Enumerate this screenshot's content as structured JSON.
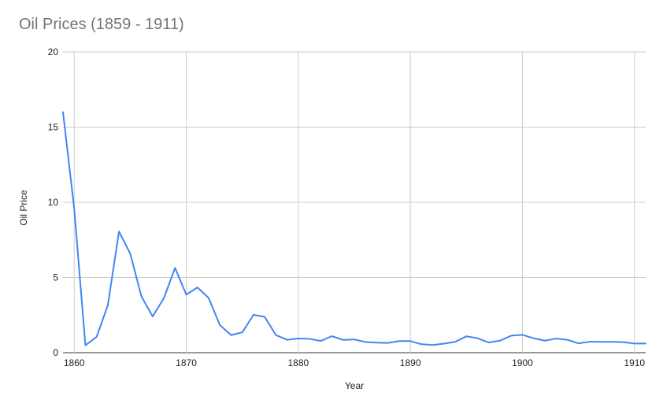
{
  "chart_data": {
    "type": "line",
    "title": "Oil Prices (1859 - 1911)",
    "xlabel": "Year",
    "ylabel": "Oil Price",
    "xlim": [
      1859,
      1911
    ],
    "ylim": [
      0,
      20
    ],
    "x_ticks": [
      1860,
      1870,
      1880,
      1890,
      1900,
      1910
    ],
    "y_ticks": [
      0,
      5,
      10,
      15,
      20
    ],
    "grid": true,
    "legend": "none",
    "line_color": "#4285f4",
    "series": [
      {
        "x": [
          1859,
          1860,
          1861,
          1862,
          1863,
          1864,
          1865,
          1866,
          1867,
          1868,
          1869,
          1870,
          1871,
          1872,
          1873,
          1874,
          1875,
          1876,
          1877,
          1878,
          1879,
          1880,
          1881,
          1882,
          1883,
          1884,
          1885,
          1886,
          1887,
          1888,
          1889,
          1890,
          1891,
          1892,
          1893,
          1894,
          1895,
          1896,
          1897,
          1898,
          1899,
          1900,
          1901,
          1902,
          1903,
          1904,
          1905,
          1906,
          1907,
          1908,
          1909,
          1910,
          1911
        ],
        "y": [
          16.0,
          9.59,
          0.49,
          1.05,
          3.15,
          8.06,
          6.59,
          3.74,
          2.41,
          3.62,
          5.64,
          3.86,
          4.34,
          3.64,
          1.83,
          1.17,
          1.35,
          2.52,
          2.38,
          1.17,
          0.86,
          0.94,
          0.92,
          0.78,
          1.1,
          0.85,
          0.88,
          0.71,
          0.67,
          0.65,
          0.77,
          0.77,
          0.56,
          0.51,
          0.6,
          0.72,
          1.09,
          0.96,
          0.68,
          0.8,
          1.13,
          1.19,
          0.96,
          0.8,
          0.94,
          0.86,
          0.62,
          0.73,
          0.72,
          0.72,
          0.7,
          0.61,
          0.61
        ]
      }
    ]
  }
}
